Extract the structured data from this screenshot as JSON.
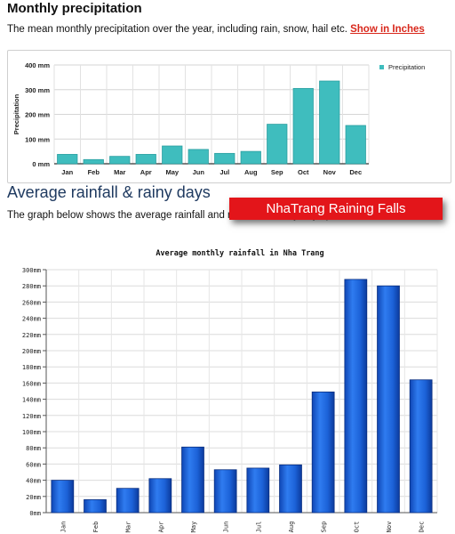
{
  "section1": {
    "title": "Monthly precipitation",
    "description": "The mean monthly precipitation over the year, including rain, snow, hail etc.",
    "link_label": "Show in Inches"
  },
  "section2": {
    "title": "Average rainfall & rainy days",
    "description": "The graph below shows the average rainfall and number of rainy days per month."
  },
  "banner": {
    "text": "NhaTrang Raining Falls",
    "color": "#e3151a"
  },
  "chart_data": [
    {
      "type": "bar",
      "title": "",
      "ylabel": "Precipitation",
      "xlabel": "",
      "legend": {
        "position": "right",
        "entries": [
          "Precipitation"
        ]
      },
      "ylim": [
        0,
        400
      ],
      "yticks": [
        "0 mm",
        "100 mm",
        "200 mm",
        "300 mm",
        "400 mm"
      ],
      "categories": [
        "Jan",
        "Feb",
        "Mar",
        "Apr",
        "May",
        "Jun",
        "Jul",
        "Aug",
        "Sep",
        "Oct",
        "Nov",
        "Dec"
      ],
      "series": [
        {
          "name": "Precipitation",
          "values": [
            38,
            17,
            30,
            38,
            72,
            58,
            42,
            50,
            160,
            305,
            335,
            155
          ]
        }
      ],
      "color": "#3fbdbe",
      "grid": true
    },
    {
      "type": "bar",
      "title": "Average monthly rainfall in Nha Trang",
      "xlabel": "",
      "ylabel": "",
      "ylim": [
        0,
        300
      ],
      "yticks": [
        "0mm",
        "20mm",
        "40mm",
        "60mm",
        "80mm",
        "100mm",
        "120mm",
        "140mm",
        "160mm",
        "180mm",
        "200mm",
        "220mm",
        "240mm",
        "260mm",
        "280mm",
        "300mm"
      ],
      "categories": [
        "Jan",
        "Feb",
        "Mar",
        "Apr",
        "May",
        "Jun",
        "Jul",
        "Aug",
        "Sep",
        "Oct",
        "Nov",
        "Dec"
      ],
      "values": [
        40,
        16,
        30,
        42,
        81,
        53,
        55,
        59,
        149,
        288,
        280,
        164
      ],
      "color": "#1a63d6",
      "grid": true
    }
  ]
}
